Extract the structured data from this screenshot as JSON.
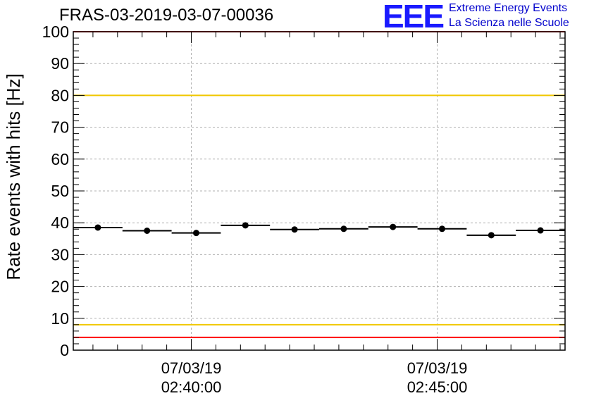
{
  "header": {
    "title": "FRAS-03-2019-03-07-00036",
    "logo_text": "EEE",
    "tagline1": "Extreme Energy Events",
    "tagline2": "La Scienza nelle Scuole"
  },
  "colors": {
    "red_line": "#ff0000",
    "yellow_line": "#f0c800",
    "logo": "#1a1aff",
    "tagline": "#0000cc",
    "marker": "#000000"
  },
  "chart_data": {
    "type": "scatter",
    "title": "FRAS-03-2019-03-07-00036",
    "ylabel": "Rate events with hits [Hz]",
    "xlabel": "",
    "ylim": [
      0,
      100
    ],
    "y_ticks": [
      "0",
      "10",
      "20",
      "30",
      "40",
      "50",
      "60",
      "70",
      "80",
      "90",
      "100"
    ],
    "x_ticks": [
      {
        "date": "07/03/19",
        "time": "02:40:00"
      },
      {
        "date": "07/03/19",
        "time": "02:45:00"
      }
    ],
    "series": [
      {
        "values": [
          38.5,
          37.5,
          36.8,
          39.2,
          37.9,
          38.1,
          38.7,
          38.1,
          36.1,
          37.6
        ]
      }
    ],
    "reference_lines": [
      {
        "y": 100,
        "color": "red"
      },
      {
        "y": 80,
        "color": "yellow"
      },
      {
        "y": 8,
        "color": "yellow"
      },
      {
        "y": 4,
        "color": "red"
      }
    ],
    "grid": true
  }
}
